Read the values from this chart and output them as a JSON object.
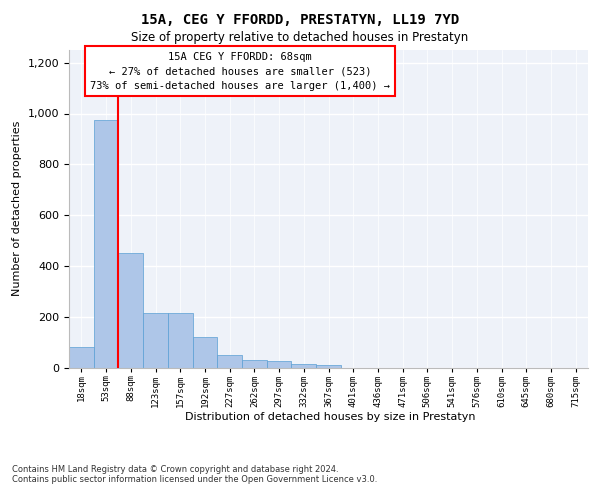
{
  "title": "15A, CEG Y FFORDD, PRESTATYN, LL19 7YD",
  "subtitle": "Size of property relative to detached houses in Prestatyn",
  "xlabel": "Distribution of detached houses by size in Prestatyn",
  "ylabel": "Number of detached properties",
  "bar_labels": [
    "18sqm",
    "53sqm",
    "88sqm",
    "123sqm",
    "157sqm",
    "192sqm",
    "227sqm",
    "262sqm",
    "297sqm",
    "332sqm",
    "367sqm",
    "401sqm",
    "436sqm",
    "471sqm",
    "506sqm",
    "541sqm",
    "576sqm",
    "610sqm",
    "645sqm",
    "680sqm",
    "715sqm"
  ],
  "bar_values": [
    80,
    975,
    450,
    215,
    215,
    120,
    48,
    28,
    25,
    15,
    10,
    0,
    0,
    0,
    0,
    0,
    0,
    0,
    0,
    0,
    0
  ],
  "bar_color": "#aec6e8",
  "bar_edge_color": "#5a9fd4",
  "ylim": [
    0,
    1250
  ],
  "yticks": [
    0,
    200,
    400,
    600,
    800,
    1000,
    1200
  ],
  "annotation_box_text": "15A CEG Y FFORDD: 68sqm\n← 27% of detached houses are smaller (523)\n73% of semi-detached houses are larger (1,400) →",
  "red_line_x": 1.5,
  "footnote": "Contains HM Land Registry data © Crown copyright and database right 2024.\nContains public sector information licensed under the Open Government Licence v3.0.",
  "plot_bg_color": "#eef2f9"
}
